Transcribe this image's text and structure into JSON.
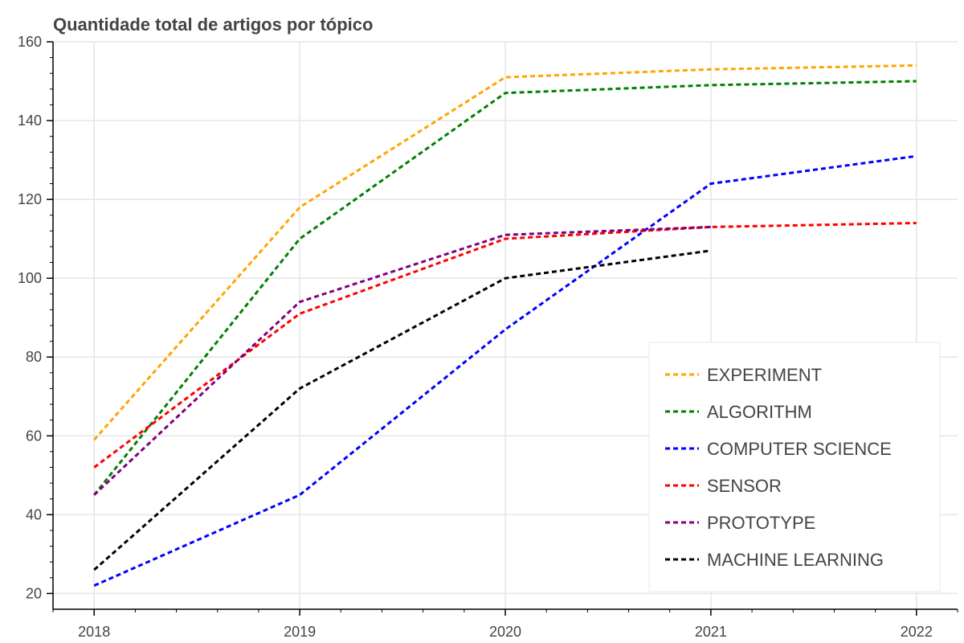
{
  "chart_data": {
    "type": "line",
    "title": "Quantidade total de artigos por tópico",
    "xlabel": "",
    "ylabel": "",
    "x": [
      2018,
      2019,
      2020,
      2021,
      2022
    ],
    "xlim": [
      2017.8,
      2022.2
    ],
    "ylim": [
      16,
      160
    ],
    "x_ticks": [
      "2018",
      "2019",
      "2020",
      "2021",
      "2022"
    ],
    "y_ticks": [
      "20",
      "40",
      "60",
      "80",
      "100",
      "120",
      "140",
      "160"
    ],
    "grid": true,
    "legend_position": "bottom-right",
    "line_style": "dashed",
    "series": [
      {
        "name": "EXPERIMENT",
        "color": "#ffa500",
        "values": [
          59,
          118,
          151,
          153,
          154
        ]
      },
      {
        "name": "ALGORITHM",
        "color": "#008000",
        "values": [
          45,
          110,
          147,
          149,
          150
        ]
      },
      {
        "name": "COMPUTER SCIENCE",
        "color": "#0000ff",
        "values": [
          22,
          45,
          87,
          124,
          131
        ]
      },
      {
        "name": "SENSOR",
        "color": "#ff0000",
        "values": [
          52,
          91,
          110,
          113,
          114
        ]
      },
      {
        "name": "PROTOTYPE",
        "color": "#800080",
        "values": [
          45,
          94,
          111,
          113,
          null
        ]
      },
      {
        "name": "MACHINE LEARNING",
        "color": "#000000",
        "values": [
          26,
          72,
          100,
          107,
          null
        ]
      }
    ]
  }
}
